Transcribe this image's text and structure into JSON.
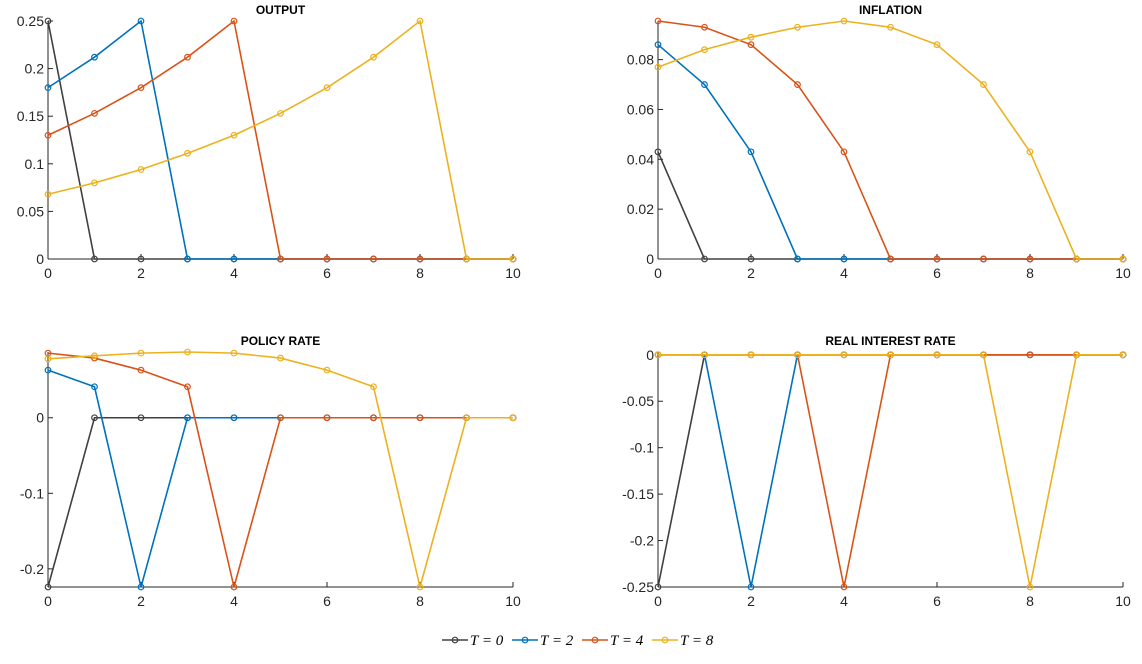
{
  "legend": [
    "T = 0",
    "T = 2",
    "T = 4",
    "T = 8"
  ],
  "chart_data": [
    {
      "type": "line",
      "title": "OUTPUT",
      "x": [
        0,
        1,
        2,
        3,
        4,
        5,
        6,
        7,
        8,
        9,
        10
      ],
      "xlim": [
        0,
        10
      ],
      "xticks": [
        0,
        2,
        4,
        6,
        8,
        10
      ],
      "ylim": [
        0,
        0.25
      ],
      "yticks": [
        0,
        0.05,
        0.1,
        0.15,
        0.2,
        0.25
      ],
      "series": [
        {
          "color": "#404040",
          "values": [
            0.25,
            0,
            0,
            0,
            0,
            0,
            0,
            0,
            0,
            0,
            0
          ]
        },
        {
          "color": "#0072BD",
          "values": [
            0.18,
            0.212,
            0.25,
            0,
            0,
            0,
            0,
            0,
            0,
            0,
            0
          ]
        },
        {
          "color": "#D95319",
          "values": [
            0.13,
            0.153,
            0.18,
            0.212,
            0.25,
            0,
            0,
            0,
            0,
            0,
            0
          ]
        },
        {
          "color": "#EDB120",
          "values": [
            0.068,
            0.08,
            0.094,
            0.111,
            0.13,
            0.153,
            0.18,
            0.212,
            0.25,
            0,
            0
          ]
        }
      ]
    },
    {
      "type": "line",
      "title": "INFLATION",
      "x": [
        0,
        1,
        2,
        3,
        4,
        5,
        6,
        7,
        8,
        9,
        10
      ],
      "xlim": [
        0,
        10
      ],
      "xticks": [
        0,
        2,
        4,
        6,
        8,
        10
      ],
      "ylim": [
        0,
        0.0955
      ],
      "yticks": [
        0,
        0.02,
        0.04,
        0.06,
        0.08
      ],
      "series": [
        {
          "color": "#404040",
          "values": [
            0.043,
            0,
            0,
            0,
            0,
            0,
            0,
            0,
            0,
            0,
            0
          ]
        },
        {
          "color": "#0072BD",
          "values": [
            0.086,
            0.07,
            0.043,
            0,
            0,
            0,
            0,
            0,
            0,
            0,
            0
          ]
        },
        {
          "color": "#D95319",
          "values": [
            0.0955,
            0.093,
            0.086,
            0.07,
            0.043,
            0,
            0,
            0,
            0,
            0,
            0
          ]
        },
        {
          "color": "#EDB120",
          "values": [
            0.077,
            0.084,
            0.089,
            0.093,
            0.0955,
            0.093,
            0.086,
            0.07,
            0.043,
            0,
            0
          ]
        }
      ]
    },
    {
      "type": "line",
      "title": "POLICY RATE",
      "x": [
        0,
        1,
        2,
        3,
        4,
        5,
        6,
        7,
        8,
        9,
        10
      ],
      "xlim": [
        0,
        10
      ],
      "xticks": [
        0,
        2,
        4,
        6,
        8,
        10
      ],
      "ylim": [
        -0.224,
        0.087
      ],
      "yticks": [
        -0.2,
        -0.1,
        0
      ],
      "series": [
        {
          "color": "#404040",
          "values": [
            -0.224,
            0,
            0,
            0,
            0,
            0,
            0,
            0,
            0,
            0,
            0
          ]
        },
        {
          "color": "#0072BD",
          "values": [
            0.063,
            0.041,
            -0.224,
            0,
            0,
            0,
            0,
            0,
            0,
            0,
            0
          ]
        },
        {
          "color": "#D95319",
          "values": [
            0.0855,
            0.079,
            0.063,
            0.041,
            -0.224,
            0,
            0,
            0,
            0,
            0,
            0
          ]
        },
        {
          "color": "#EDB120",
          "values": [
            0.078,
            0.082,
            0.0855,
            0.087,
            0.0855,
            0.079,
            0.063,
            0.041,
            -0.224,
            0,
            0
          ]
        }
      ]
    },
    {
      "type": "line",
      "title": "REAL INTEREST RATE",
      "x": [
        0,
        1,
        2,
        3,
        4,
        5,
        6,
        7,
        8,
        9,
        10
      ],
      "xlim": [
        0,
        10
      ],
      "xticks": [
        0,
        2,
        4,
        6,
        8,
        10
      ],
      "ylim": [
        -0.25,
        0.003
      ],
      "yticks": [
        -0.25,
        -0.2,
        -0.15,
        -0.1,
        -0.05,
        0
      ],
      "series": [
        {
          "color": "#404040",
          "values": [
            -0.25,
            0,
            0,
            0,
            0,
            0,
            0,
            0,
            0,
            0,
            0
          ]
        },
        {
          "color": "#0072BD",
          "values": [
            0,
            0,
            -0.25,
            0,
            0,
            0,
            0,
            0,
            0,
            0,
            0
          ]
        },
        {
          "color": "#D95319",
          "values": [
            0,
            0,
            0,
            0,
            -0.25,
            0,
            0,
            0,
            0,
            0,
            0
          ]
        },
        {
          "color": "#EDB120",
          "values": [
            0,
            0,
            0,
            0,
            0,
            0,
            0,
            0,
            -0.25,
            0,
            0
          ]
        }
      ]
    }
  ]
}
